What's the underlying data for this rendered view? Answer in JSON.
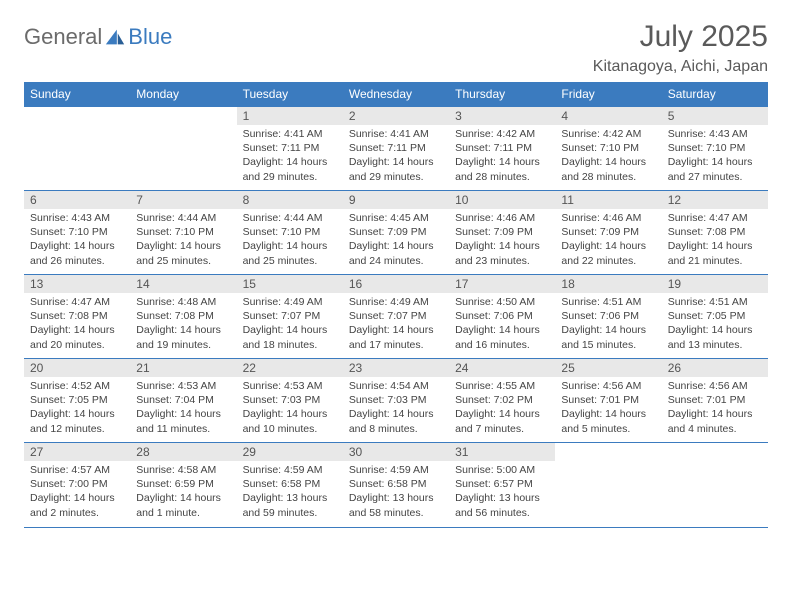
{
  "brand": {
    "word1": "General",
    "word2": "Blue"
  },
  "title": "July 2025",
  "location": "Kitanagoya, Aichi, Japan",
  "colors": {
    "accent": "#3b7bbf",
    "header_text": "#ffffff",
    "daynum_bg": "#e8e8e8",
    "text": "#444444",
    "title_text": "#5a5a5a"
  },
  "day_headers": [
    "Sunday",
    "Monday",
    "Tuesday",
    "Wednesday",
    "Thursday",
    "Friday",
    "Saturday"
  ],
  "weeks": [
    [
      null,
      null,
      {
        "n": "1",
        "sr": "4:41 AM",
        "ss": "7:11 PM",
        "dl": "14 hours and 29 minutes."
      },
      {
        "n": "2",
        "sr": "4:41 AM",
        "ss": "7:11 PM",
        "dl": "14 hours and 29 minutes."
      },
      {
        "n": "3",
        "sr": "4:42 AM",
        "ss": "7:11 PM",
        "dl": "14 hours and 28 minutes."
      },
      {
        "n": "4",
        "sr": "4:42 AM",
        "ss": "7:10 PM",
        "dl": "14 hours and 28 minutes."
      },
      {
        "n": "5",
        "sr": "4:43 AM",
        "ss": "7:10 PM",
        "dl": "14 hours and 27 minutes."
      }
    ],
    [
      {
        "n": "6",
        "sr": "4:43 AM",
        "ss": "7:10 PM",
        "dl": "14 hours and 26 minutes."
      },
      {
        "n": "7",
        "sr": "4:44 AM",
        "ss": "7:10 PM",
        "dl": "14 hours and 25 minutes."
      },
      {
        "n": "8",
        "sr": "4:44 AM",
        "ss": "7:10 PM",
        "dl": "14 hours and 25 minutes."
      },
      {
        "n": "9",
        "sr": "4:45 AM",
        "ss": "7:09 PM",
        "dl": "14 hours and 24 minutes."
      },
      {
        "n": "10",
        "sr": "4:46 AM",
        "ss": "7:09 PM",
        "dl": "14 hours and 23 minutes."
      },
      {
        "n": "11",
        "sr": "4:46 AM",
        "ss": "7:09 PM",
        "dl": "14 hours and 22 minutes."
      },
      {
        "n": "12",
        "sr": "4:47 AM",
        "ss": "7:08 PM",
        "dl": "14 hours and 21 minutes."
      }
    ],
    [
      {
        "n": "13",
        "sr": "4:47 AM",
        "ss": "7:08 PM",
        "dl": "14 hours and 20 minutes."
      },
      {
        "n": "14",
        "sr": "4:48 AM",
        "ss": "7:08 PM",
        "dl": "14 hours and 19 minutes."
      },
      {
        "n": "15",
        "sr": "4:49 AM",
        "ss": "7:07 PM",
        "dl": "14 hours and 18 minutes."
      },
      {
        "n": "16",
        "sr": "4:49 AM",
        "ss": "7:07 PM",
        "dl": "14 hours and 17 minutes."
      },
      {
        "n": "17",
        "sr": "4:50 AM",
        "ss": "7:06 PM",
        "dl": "14 hours and 16 minutes."
      },
      {
        "n": "18",
        "sr": "4:51 AM",
        "ss": "7:06 PM",
        "dl": "14 hours and 15 minutes."
      },
      {
        "n": "19",
        "sr": "4:51 AM",
        "ss": "7:05 PM",
        "dl": "14 hours and 13 minutes."
      }
    ],
    [
      {
        "n": "20",
        "sr": "4:52 AM",
        "ss": "7:05 PM",
        "dl": "14 hours and 12 minutes."
      },
      {
        "n": "21",
        "sr": "4:53 AM",
        "ss": "7:04 PM",
        "dl": "14 hours and 11 minutes."
      },
      {
        "n": "22",
        "sr": "4:53 AM",
        "ss": "7:03 PM",
        "dl": "14 hours and 10 minutes."
      },
      {
        "n": "23",
        "sr": "4:54 AM",
        "ss": "7:03 PM",
        "dl": "14 hours and 8 minutes."
      },
      {
        "n": "24",
        "sr": "4:55 AM",
        "ss": "7:02 PM",
        "dl": "14 hours and 7 minutes."
      },
      {
        "n": "25",
        "sr": "4:56 AM",
        "ss": "7:01 PM",
        "dl": "14 hours and 5 minutes."
      },
      {
        "n": "26",
        "sr": "4:56 AM",
        "ss": "7:01 PM",
        "dl": "14 hours and 4 minutes."
      }
    ],
    [
      {
        "n": "27",
        "sr": "4:57 AM",
        "ss": "7:00 PM",
        "dl": "14 hours and 2 minutes."
      },
      {
        "n": "28",
        "sr": "4:58 AM",
        "ss": "6:59 PM",
        "dl": "14 hours and 1 minute."
      },
      {
        "n": "29",
        "sr": "4:59 AM",
        "ss": "6:58 PM",
        "dl": "13 hours and 59 minutes."
      },
      {
        "n": "30",
        "sr": "4:59 AM",
        "ss": "6:58 PM",
        "dl": "13 hours and 58 minutes."
      },
      {
        "n": "31",
        "sr": "5:00 AM",
        "ss": "6:57 PM",
        "dl": "13 hours and 56 minutes."
      },
      null,
      null
    ]
  ],
  "labels": {
    "sunrise": "Sunrise:",
    "sunset": "Sunset:",
    "daylight": "Daylight:"
  }
}
